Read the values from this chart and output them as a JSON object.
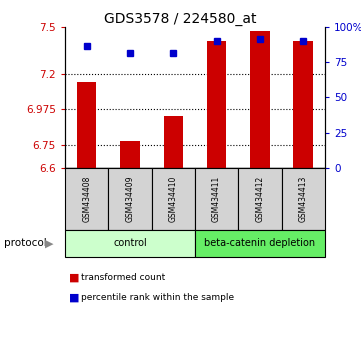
{
  "title": "GDS3578 / 224580_at",
  "samples": [
    "GSM434408",
    "GSM434409",
    "GSM434410",
    "GSM434411",
    "GSM434412",
    "GSM434413"
  ],
  "red_values": [
    7.15,
    6.77,
    6.93,
    7.41,
    7.47,
    7.41
  ],
  "blue_values": [
    86,
    81,
    81,
    90,
    91,
    90
  ],
  "ylim_left": [
    6.6,
    7.5
  ],
  "ylim_right": [
    0,
    100
  ],
  "yticks_left": [
    6.6,
    6.75,
    6.975,
    7.2,
    7.5
  ],
  "yticks_left_labels": [
    "6.6",
    "6.75",
    "6.975",
    "7.2",
    "7.5"
  ],
  "yticks_right": [
    0,
    25,
    50,
    75,
    100
  ],
  "yticks_right_labels": [
    "0",
    "25",
    "50",
    "75",
    "100%"
  ],
  "dotted_lines": [
    6.75,
    6.975,
    7.2
  ],
  "control_label": "control",
  "treatment_label": "beta-catenin depletion",
  "protocol_label": "protocol",
  "legend_red": "transformed count",
  "legend_blue": "percentile rank within the sample",
  "red_color": "#cc0000",
  "blue_color": "#0000cc",
  "control_bg": "#ccffcc",
  "treatment_bg": "#66ee66",
  "bar_bottom": 6.6,
  "title_fontsize": 10,
  "tick_fontsize": 7.5,
  "label_fontsize": 7
}
